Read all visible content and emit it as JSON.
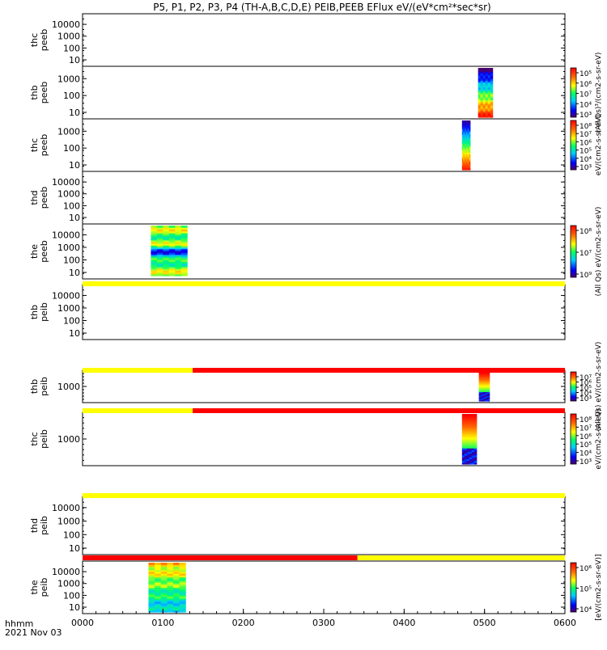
{
  "title": "P5, P1, P2, P3, P4 (TH-A,B,C,D,E) PEIB,PEEB EFlux eV/(eV*cm²*sec*sr)",
  "footer": {
    "time_label": "hhmm",
    "date_label": "2021 Nov 03"
  },
  "colors": {
    "flag_yellow": "#ffff00",
    "flag_red": "#ff0000"
  },
  "chart_data": {
    "type": "heatmap",
    "x_ticks": [
      "0000",
      "0100",
      "0200",
      "0300",
      "0400",
      "0500",
      "0600"
    ],
    "x_range_hours": [
      0,
      6
    ],
    "panels": [
      {
        "name": "thc-peeb",
        "label": [
          "thc",
          "peeb"
        ],
        "ylog": true,
        "yticks": [
          "10",
          "100",
          "1000",
          "10000"
        ],
        "colorbar": null,
        "spectra": []
      },
      {
        "name": "thb-peeb",
        "label": [
          "thb",
          "peeb"
        ],
        "ylog": true,
        "yticks": [
          "10",
          "100",
          "1000"
        ],
        "colorbar": {
          "ticks": [
            "10⁵",
            "10⁶",
            "10⁷",
            "10⁴",
            "10³"
          ],
          "unit": "(All Qs)³/(cm2-s-sr-eV)"
        },
        "spectra": [
          {
            "t_start": 4.92,
            "t_end": 5.1,
            "pattern": "electron_low_hot"
          }
        ]
      },
      {
        "name": "thc-peeb-2",
        "label": [
          "thc",
          "peeb"
        ],
        "ylog": true,
        "yticks": [
          "10",
          "100",
          "1000"
        ],
        "colorbar": {
          "ticks": [
            "10⁸",
            "10⁷",
            "10⁶",
            "10⁵",
            "10⁴",
            "10³"
          ],
          "unit": "eV/(cm2-s-sr-eV)"
        },
        "spectra": [
          {
            "t_start": 4.72,
            "t_end": 4.82,
            "pattern": "electron_low_hot_short"
          }
        ]
      },
      {
        "name": "thd-peeb",
        "label": [
          "thd",
          "peeb"
        ],
        "ylog": true,
        "yticks": [
          "10",
          "100",
          "1000",
          "10000"
        ],
        "colorbar": null,
        "spectra": []
      },
      {
        "name": "the-peeb",
        "label": [
          "the",
          "peeb"
        ],
        "ylog": true,
        "yticks": [
          "10",
          "100",
          "1000",
          "10000"
        ],
        "colorbar": {
          "ticks": [
            "10⁸",
            "10⁷",
            "10⁹"
          ],
          "unit": "(All Qs) eV/(cm2-s-sr-eV)"
        },
        "spectra": [
          {
            "t_start": 0.85,
            "t_end": 1.3,
            "pattern": "electron_the"
          }
        ]
      },
      {
        "name": "thb-peib",
        "label": [
          "thb",
          "peib"
        ],
        "ylog": true,
        "yticks": [
          "10",
          "100",
          "1000",
          "10000"
        ],
        "colorbar": null,
        "spectra": []
      },
      {
        "name": "thb-peib-2",
        "label": [
          "thb",
          "peib"
        ],
        "ylog": true,
        "yticks": [
          "1000"
        ],
        "colorbar": {
          "ticks": [
            "10⁷",
            "10⁶",
            "10⁵",
            "10⁴",
            "10³"
          ],
          "unit": "(All Qs) eV/(cm2-s-sr-eV)"
        },
        "spectra": [
          {
            "t_start": 4.93,
            "t_end": 5.06,
            "pattern": "ion_hot"
          }
        ]
      },
      {
        "name": "thc-peib",
        "label": [
          "thc",
          "peib"
        ],
        "ylog": true,
        "yticks": [
          "1000"
        ],
        "colorbar": {
          "ticks": [
            "10⁸",
            "10⁷",
            "10⁶",
            "10⁵",
            "10⁴",
            "10³"
          ],
          "unit": "eV/(cm2-s-sr-eV)"
        },
        "spectra": [
          {
            "t_start": 4.72,
            "t_end": 4.9,
            "pattern": "ion_hot"
          }
        ]
      },
      {
        "name": "thd-peib",
        "label": [
          "thd",
          "peib"
        ],
        "ylog": true,
        "yticks": [
          "10",
          "100",
          "1000",
          "10000"
        ],
        "colorbar": null,
        "spectra": []
      },
      {
        "name": "the-peib",
        "label": [
          "the",
          "peib"
        ],
        "ylog": true,
        "yticks": [
          "10",
          "100",
          "1000",
          "10000"
        ],
        "colorbar": {
          "ticks": [
            "10⁶",
            "10⁵",
            "10⁴"
          ],
          "unit": "[eV/(cm2-s-sr-eV)]"
        },
        "spectra": [
          {
            "t_start": 0.82,
            "t_end": 1.28,
            "pattern": "ion_the"
          }
        ]
      }
    ],
    "flag_bars": [
      {
        "after_panel": 4,
        "segments": [
          {
            "t_start": 0,
            "t_end": 6,
            "color": "yellow"
          }
        ]
      },
      {
        "after_panel": 5,
        "segments": [
          {
            "t_start": 0,
            "t_end": 1.37,
            "color": "yellow"
          },
          {
            "t_start": 1.37,
            "t_end": 6,
            "color": "red"
          }
        ]
      },
      {
        "after_panel": 6,
        "segments": [
          {
            "t_start": 0,
            "t_end": 1.37,
            "color": "yellow"
          },
          {
            "t_start": 1.37,
            "t_end": 6,
            "color": "red"
          }
        ]
      },
      {
        "after_panel": 7,
        "segments": [
          {
            "t_start": 0,
            "t_end": 6,
            "color": "yellow"
          }
        ]
      },
      {
        "after_panel": 8,
        "segments": [
          {
            "t_start": 0,
            "t_end": 3.42,
            "color": "red"
          },
          {
            "t_start": 3.42,
            "t_end": 6,
            "color": "yellow"
          }
        ]
      }
    ]
  }
}
